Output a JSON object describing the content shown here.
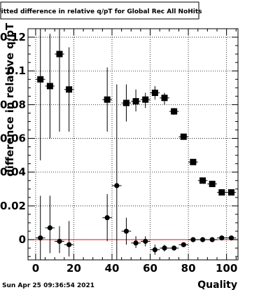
{
  "timestamp": "Sun Apr 25 09:36:54 2021",
  "chart_data": {
    "type": "scatter",
    "title": "Fitted difference in relative q/pT for Global Rec All NoHits",
    "xlabel": "Quality",
    "ylabel": "difference in relative q/pT",
    "xlim": [
      -4,
      106
    ],
    "ylim": [
      -0.012,
      0.125
    ],
    "grid": true,
    "x_ticks": [
      0,
      20,
      40,
      60,
      80,
      100
    ],
    "y_ticks": [
      0,
      0.02,
      0.04,
      0.06,
      0.08,
      0.1,
      0.12
    ],
    "x_tick_labels": [
      "0",
      "20",
      "40",
      "60",
      "80",
      "100"
    ],
    "y_tick_labels": [
      "0",
      "0.02",
      "0.04",
      "0.06",
      "0.08",
      "0.1",
      "0.12"
    ],
    "reference_line": {
      "y": 0,
      "color": "#e8140f"
    },
    "series": [
      {
        "marker": "square",
        "points": [
          {
            "x": 2.5,
            "y": 0.095,
            "ylo": 0.047,
            "yhi": 0.125
          },
          {
            "x": 7.5,
            "y": 0.091,
            "ylo": 0.06,
            "yhi": 0.122
          },
          {
            "x": 12.5,
            "y": 0.11,
            "ylo": 0.064,
            "yhi": 0.125
          },
          {
            "x": 17.5,
            "y": 0.089,
            "ylo": 0.064,
            "yhi": 0.114
          },
          {
            "x": 37.5,
            "y": 0.083,
            "ylo": 0.064,
            "yhi": 0.102
          },
          {
            "x": 47.5,
            "y": 0.081,
            "ylo": 0.07,
            "yhi": 0.092
          },
          {
            "x": 52.5,
            "y": 0.082,
            "ylo": 0.076,
            "yhi": 0.089
          },
          {
            "x": 57.5,
            "y": 0.083,
            "ylo": 0.078,
            "yhi": 0.087
          },
          {
            "x": 62.5,
            "y": 0.087,
            "ylo": 0.083,
            "yhi": 0.091
          },
          {
            "x": 67.5,
            "y": 0.084,
            "ylo": 0.08,
            "yhi": 0.087
          },
          {
            "x": 72.5,
            "y": 0.076,
            "ylo": 0.074,
            "yhi": 0.078
          },
          {
            "x": 77.5,
            "y": 0.061,
            "ylo": 0.06,
            "yhi": 0.062
          },
          {
            "x": 82.5,
            "y": 0.046,
            "ylo": 0.045,
            "yhi": 0.047
          },
          {
            "x": 87.5,
            "y": 0.035,
            "ylo": 0.034,
            "yhi": 0.036
          },
          {
            "x": 92.5,
            "y": 0.033,
            "ylo": 0.032,
            "yhi": 0.034
          },
          {
            "x": 97.5,
            "y": 0.028,
            "ylo": 0.027,
            "yhi": 0.029
          },
          {
            "x": 102.5,
            "y": 0.028,
            "ylo": 0.027,
            "yhi": 0.029
          }
        ]
      },
      {
        "marker": "circle",
        "points": [
          {
            "x": 2.5,
            "y": 0.001,
            "ylo": -0.012,
            "yhi": 0.026
          },
          {
            "x": 7.5,
            "y": 0.007,
            "ylo": -0.008,
            "yhi": 0.026
          },
          {
            "x": 12.5,
            "y": -0.001,
            "ylo": -0.008,
            "yhi": 0.008
          },
          {
            "x": 17.5,
            "y": -0.003,
            "ylo": -0.01,
            "yhi": 0.011
          },
          {
            "x": 37.5,
            "y": 0.013,
            "ylo": -0.001,
            "yhi": 0.027
          },
          {
            "x": 42.5,
            "y": 0.032,
            "ylo": -0.012,
            "yhi": 0.092
          },
          {
            "x": 47.5,
            "y": 0.005,
            "ylo": -0.003,
            "yhi": 0.013
          },
          {
            "x": 52.5,
            "y": -0.002,
            "ylo": -0.005,
            "yhi": 0.002
          },
          {
            "x": 57.5,
            "y": -0.001,
            "ylo": -0.004,
            "yhi": 0.002
          },
          {
            "x": 62.5,
            "y": -0.006,
            "ylo": -0.009,
            "yhi": -0.003
          },
          {
            "x": 67.5,
            "y": -0.005,
            "ylo": -0.007,
            "yhi": -0.003
          },
          {
            "x": 72.5,
            "y": -0.005,
            "ylo": -0.006,
            "yhi": -0.004
          },
          {
            "x": 77.5,
            "y": -0.003,
            "ylo": -0.004,
            "yhi": -0.002
          },
          {
            "x": 82.5,
            "y": 0.0,
            "ylo": -0.0005,
            "yhi": 0.0005
          },
          {
            "x": 87.5,
            "y": 0.0,
            "ylo": -0.0005,
            "yhi": 0.0005
          },
          {
            "x": 92.5,
            "y": 0.0,
            "ylo": -0.0005,
            "yhi": 0.0005
          },
          {
            "x": 97.5,
            "y": 0.001,
            "ylo": 0.0005,
            "yhi": 0.0015
          },
          {
            "x": 102.5,
            "y": 0.001,
            "ylo": 0.0005,
            "yhi": 0.0015
          }
        ]
      }
    ]
  }
}
